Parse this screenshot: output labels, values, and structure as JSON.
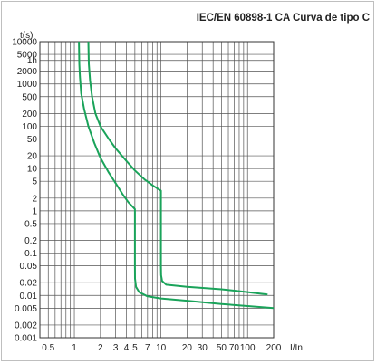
{
  "chart_data": {
    "type": "line",
    "title": "IEC/EN 60898-1 CA Curva de tipo C",
    "ylabel": "t(s)",
    "xlabel": "I/In",
    "x_scale": "log",
    "y_scale": "log",
    "xlim": [
      0.4,
      200
    ],
    "ylim": [
      0.001,
      10000
    ],
    "grid": true,
    "x_ticks": [
      {
        "v": 0.5,
        "label": "0.5"
      },
      {
        "v": 1,
        "label": "1"
      },
      {
        "v": 2,
        "label": "2"
      },
      {
        "v": 3,
        "label": "3"
      },
      {
        "v": 4,
        "label": "4"
      },
      {
        "v": 5,
        "label": "5"
      },
      {
        "v": 7,
        "label": "7"
      },
      {
        "v": 10,
        "label": "10"
      },
      {
        "v": 20,
        "label": "20"
      },
      {
        "v": 30,
        "label": "30"
      },
      {
        "v": 50,
        "label": "50"
      },
      {
        "v": 70,
        "label": "70"
      },
      {
        "v": 100,
        "label": "100"
      },
      {
        "v": 200,
        "label": "200"
      }
    ],
    "y_ticks": [
      {
        "v": 10000,
        "label": "10000"
      },
      {
        "v": 5000,
        "label": "5000"
      },
      {
        "v": 3600,
        "label": "1h"
      },
      {
        "v": 2000,
        "label": "2000"
      },
      {
        "v": 1000,
        "label": "1000"
      },
      {
        "v": 500,
        "label": "500"
      },
      {
        "v": 200,
        "label": "200"
      },
      {
        "v": 100,
        "label": "100"
      },
      {
        "v": 50,
        "label": "50"
      },
      {
        "v": 20,
        "label": "20"
      },
      {
        "v": 10,
        "label": "10"
      },
      {
        "v": 5,
        "label": "5"
      },
      {
        "v": 2,
        "label": "2"
      },
      {
        "v": 1,
        "label": "1"
      },
      {
        "v": 0.5,
        "label": "0.5"
      },
      {
        "v": 0.2,
        "label": "0.2"
      },
      {
        "v": 0.1,
        "label": "0.1"
      },
      {
        "v": 0.05,
        "label": "0.05"
      },
      {
        "v": 0.02,
        "label": "0.02"
      },
      {
        "v": 0.01,
        "label": "0.01"
      },
      {
        "v": 0.005,
        "label": "0.005"
      },
      {
        "v": 0.002,
        "label": "0.002"
      },
      {
        "v": 0.001,
        "label": "0.001"
      }
    ],
    "x_grid": [
      0.4,
      0.5,
      0.6,
      0.7,
      0.8,
      0.9,
      1,
      2,
      3,
      4,
      5,
      6,
      7,
      8,
      9,
      10,
      20,
      30,
      40,
      50,
      60,
      70,
      80,
      90,
      100,
      200
    ],
    "series": [
      {
        "color": "#1aa35a",
        "points": [
          [
            1.13,
            10000
          ],
          [
            1.14,
            3000
          ],
          [
            1.16,
            1500
          ],
          [
            1.2,
            600
          ],
          [
            1.3,
            250
          ],
          [
            1.45,
            100
          ],
          [
            1.7,
            40
          ],
          [
            2.0,
            18
          ],
          [
            2.5,
            8
          ],
          [
            3.0,
            4.5
          ],
          [
            3.6,
            2.5
          ],
          [
            4.2,
            1.6
          ],
          [
            5.0,
            1.1
          ],
          [
            5.0,
            0.5
          ],
          [
            5.0,
            0.1
          ],
          [
            5.0,
            0.05
          ],
          [
            5.02,
            0.025
          ],
          [
            5.15,
            0.016
          ],
          [
            5.6,
            0.012
          ],
          [
            7,
            0.0095
          ],
          [
            10,
            0.0085
          ],
          [
            20,
            0.0075
          ],
          [
            50,
            0.0063
          ],
          [
            100,
            0.0056
          ],
          [
            200,
            0.005
          ]
        ]
      },
      {
        "color": "#1aa35a",
        "points": [
          [
            1.45,
            10000
          ],
          [
            1.47,
            3000
          ],
          [
            1.52,
            1200
          ],
          [
            1.6,
            500
          ],
          [
            1.75,
            200
          ],
          [
            2.0,
            100
          ],
          [
            2.5,
            50
          ],
          [
            3.0,
            30
          ],
          [
            4.0,
            15
          ],
          [
            5.0,
            9
          ],
          [
            6.5,
            5.5
          ],
          [
            8.0,
            4
          ],
          [
            10,
            3
          ],
          [
            10,
            1
          ],
          [
            10,
            0.2
          ],
          [
            10,
            0.05
          ],
          [
            10.05,
            0.03
          ],
          [
            10.3,
            0.022
          ],
          [
            11.5,
            0.018
          ],
          [
            20,
            0.016
          ],
          [
            50,
            0.014
          ],
          [
            100,
            0.012
          ],
          [
            170,
            0.0105
          ]
        ]
      }
    ]
  }
}
